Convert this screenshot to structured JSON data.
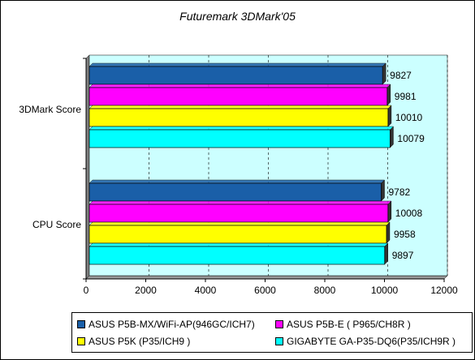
{
  "chart_data": {
    "type": "bar",
    "orientation": "horizontal",
    "title": "Futuremark 3DMark'05",
    "categories": [
      "3DMark Score",
      "CPU Score"
    ],
    "series": [
      {
        "name": "ASUS P5B-MX/WiFi-AP(946GC/ICH7)",
        "color": "#1a5fa8",
        "values": [
          9827,
          9782
        ]
      },
      {
        "name": "ASUS P5B-E ( P965/CH8R )",
        "color": "#ff00ff",
        "values": [
          9981,
          10008
        ]
      },
      {
        "name": "ASUS P5K (P35/ICH9 )",
        "color": "#ffff00",
        "values": [
          10010,
          9958
        ]
      },
      {
        "name": "GIGABYTE GA-P35-DQ6(P35/ICH9R )",
        "color": "#00ffff",
        "values": [
          10079,
          9897
        ]
      }
    ],
    "xlim": [
      0,
      12000
    ],
    "xticks": [
      0,
      2000,
      4000,
      6000,
      8000,
      10000,
      12000
    ],
    "plot_background": "#ccffff",
    "grid": "vertical dashed",
    "legend_position": "bottom"
  }
}
